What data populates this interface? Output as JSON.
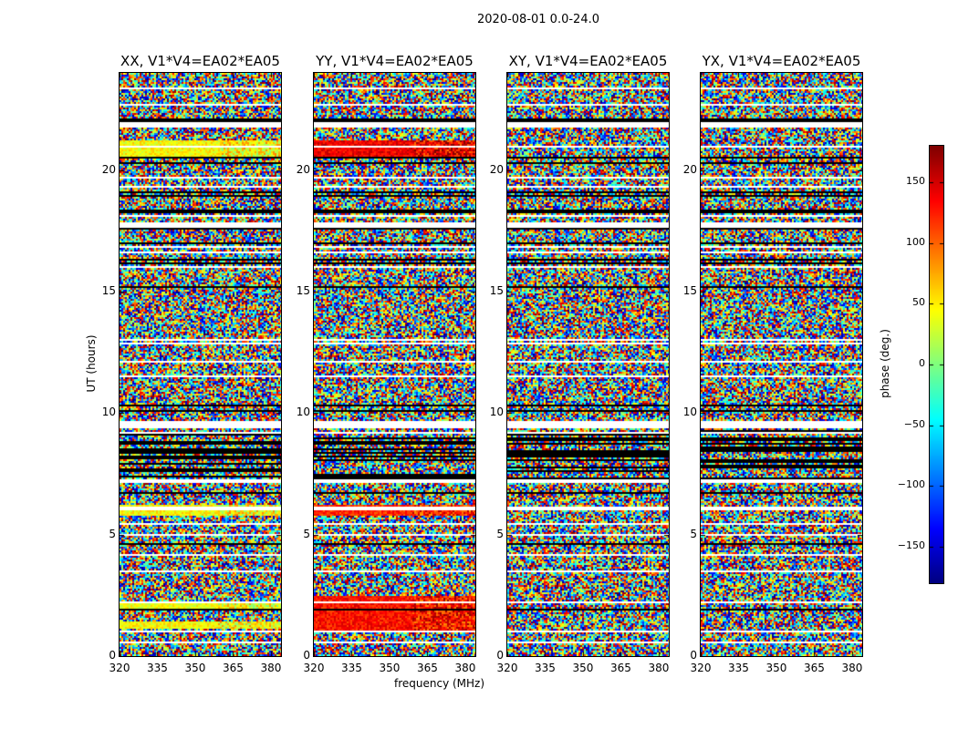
{
  "chart_data": {
    "type": "heatmap",
    "suptitle": "2020-08-01 0.0-24.0",
    "xlabel": "frequency (MHz)",
    "ylabel": "UT (hours)",
    "xlim": [
      320,
      384
    ],
    "ylim": [
      0,
      24
    ],
    "xticks": [
      "320",
      "335",
      "350",
      "365",
      "380"
    ],
    "xtick_values": [
      320,
      335,
      350,
      365,
      380
    ],
    "yticks": [
      "0",
      "5",
      "10",
      "15",
      "20"
    ],
    "ytick_values": [
      0,
      5,
      10,
      15,
      20
    ],
    "colormap": "jet",
    "colorbar": {
      "label": "phase (deg.)",
      "range": [
        -180,
        180
      ],
      "ticks": [
        "150",
        "100",
        "50",
        "0",
        "−50",
        "−100",
        "−150"
      ],
      "tick_values": [
        150,
        100,
        50,
        0,
        -50,
        -100,
        -150
      ]
    },
    "flagged_white_ut": [
      [
        21.75,
        22.0
      ],
      [
        17.6,
        17.85
      ],
      [
        9.4,
        9.6
      ],
      [
        7.15,
        7.3
      ],
      [
        6.0,
        6.1
      ],
      [
        4.95,
        5.05
      ],
      [
        3.45,
        3.55
      ],
      [
        0.95,
        1.05
      ],
      [
        13.0,
        13.05
      ],
      [
        11.9,
        11.95
      ]
    ],
    "low_amp_black_ut": [
      [
        7.3,
        9.3
      ],
      [
        21.95,
        22.05
      ],
      [
        20.45,
        20.55
      ],
      [
        18.2,
        18.4
      ],
      [
        4.55,
        4.65
      ],
      [
        1.85,
        1.95
      ]
    ],
    "panels": [
      {
        "title": "XX, V1*V4=EA02*EA05",
        "coherent_bands": [
          {
            "ut": [
              20.55,
              21.2
            ],
            "phase": 45
          },
          {
            "ut": [
              5.75,
              6.2
            ],
            "phase": 45
          },
          {
            "ut": [
              1.9,
              2.25
            ],
            "phase": 40
          },
          {
            "ut": [
              1.1,
              1.4
            ],
            "phase": 45
          }
        ]
      },
      {
        "title": "YY, V1*V4=EA02*EA05",
        "coherent_bands": [
          {
            "ut": [
              20.55,
              21.2
            ],
            "phase": 140
          },
          {
            "ut": [
              5.75,
              6.2
            ],
            "phase": 120
          },
          {
            "ut": [
              1.0,
              2.5
            ],
            "phase": 130
          }
        ]
      },
      {
        "title": "XY, V1*V4=EA02*EA05",
        "coherent_bands": []
      },
      {
        "title": "YX, V1*V4=EA02*EA05",
        "coherent_bands": []
      }
    ]
  }
}
